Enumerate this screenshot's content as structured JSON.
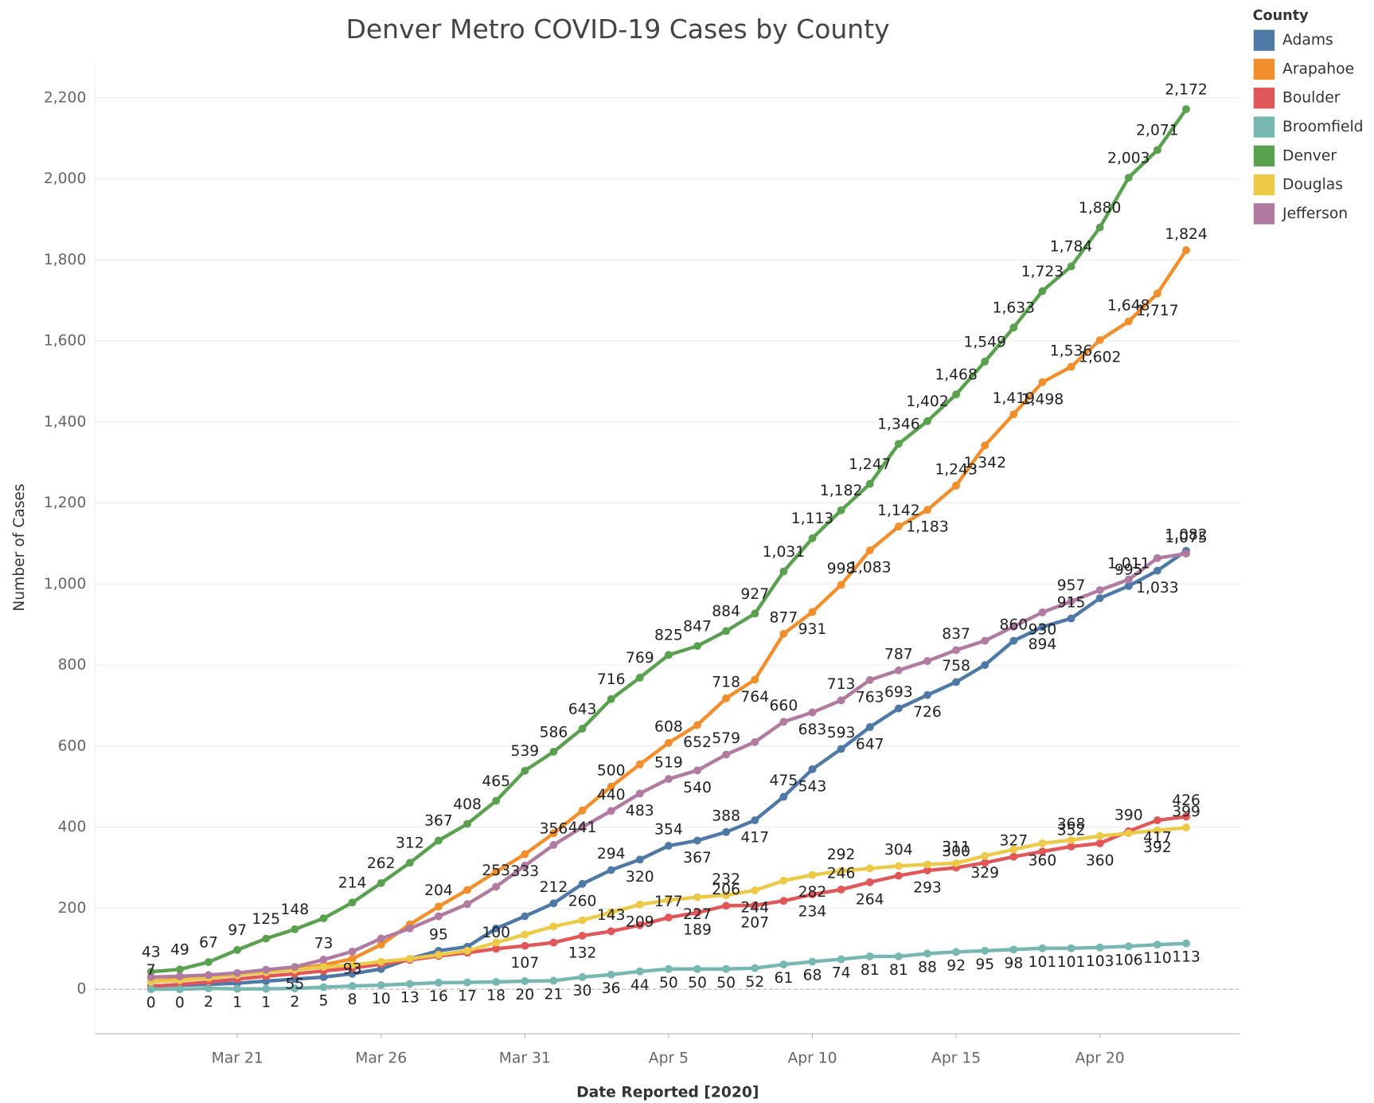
{
  "chart_data": {
    "type": "line",
    "title": "Denver Metro COVID-19 Cases by County",
    "x_label": "Date Reported [2020]",
    "y_label": "Number of Cases",
    "legend_title": "County",
    "legend": "right",
    "grid": true,
    "categories": [
      null,
      null,
      null,
      "Mar 21",
      null,
      null,
      null,
      null,
      "Mar 26",
      null,
      null,
      null,
      null,
      "Mar 31",
      null,
      null,
      null,
      null,
      "Apr 5",
      null,
      null,
      null,
      null,
      "Apr 10",
      null,
      null,
      null,
      null,
      "Apr 15",
      null,
      null,
      null,
      null,
      "Apr 20",
      null,
      null,
      null
    ],
    "ylim": [
      -110,
      2290
    ],
    "yticks": [
      0,
      200,
      400,
      600,
      800,
      {
        "value": 1000,
        "label": "1,000"
      },
      {
        "value": 1200,
        "label": "1,200"
      },
      {
        "value": 1400,
        "label": "1,400"
      },
      {
        "value": 1600,
        "label": "1,600"
      },
      {
        "value": 1800,
        "label": "1,800"
      },
      {
        "value": 2000,
        "label": "2,000"
      },
      {
        "value": 2200,
        "label": "2,200"
      }
    ],
    "series": [
      {
        "name": "Adams",
        "color": "#4e79a7",
        "values": [
          8,
          10,
          12,
          15,
          20,
          25,
          30,
          38,
          50,
          75,
          95,
          105,
          150,
          180,
          212,
          260,
          294,
          320,
          354,
          367,
          388,
          417,
          475,
          543,
          593,
          647,
          693,
          726,
          758,
          800,
          860,
          894,
          915,
          965,
          995,
          1033,
          1082
        ],
        "value_labels": [
          null,
          null,
          null,
          null,
          null,
          null,
          null,
          null,
          null,
          null,
          "95",
          null,
          null,
          null,
          "212",
          "260",
          "294",
          "320",
          "354",
          "367",
          "388",
          "417",
          "475",
          "543",
          "593",
          "647",
          "693",
          "726",
          "758",
          null,
          "860",
          "894",
          "915",
          null,
          "995",
          "1,033",
          "1,082"
        ]
      },
      {
        "name": "Arapahoe",
        "color": "#f28e2b",
        "values": [
          20,
          24,
          30,
          36,
          42,
          50,
          60,
          75,
          110,
          160,
          204,
          245,
          290,
          333,
          385,
          441,
          500,
          555,
          608,
          652,
          718,
          764,
          877,
          931,
          998,
          1083,
          1142,
          1183,
          1243,
          1342,
          1419,
          1498,
          1536,
          1602,
          1648,
          1717,
          1824
        ],
        "value_labels": [
          null,
          null,
          null,
          null,
          null,
          null,
          null,
          null,
          null,
          null,
          "204",
          null,
          null,
          "333",
          null,
          "441",
          "500",
          null,
          "608",
          "652",
          "718",
          "764",
          "877",
          "931",
          "998",
          "1,083",
          "1,142",
          "1,183",
          "1,243",
          "1,342",
          "1,419",
          "1,498",
          "1,536",
          "1,602",
          "1,648",
          "1,717",
          "1,824"
        ]
      },
      {
        "name": "Boulder",
        "color": "#e15759",
        "values": [
          7,
          12,
          18,
          25,
          32,
          38,
          45,
          52,
          62,
          72,
          82,
          90,
          100,
          107,
          115,
          132,
          143,
          158,
          177,
          189,
          206,
          207,
          218,
          234,
          246,
          264,
          280,
          293,
          300,
          312,
          327,
          340,
          352,
          360,
          390,
          417,
          426
        ],
        "value_labels": [
          "7",
          null,
          null,
          null,
          null,
          null,
          null,
          null,
          null,
          null,
          null,
          null,
          "100",
          "107",
          null,
          "132",
          "143",
          null,
          "177",
          "189",
          "206",
          "207",
          null,
          "234",
          "246",
          "264",
          null,
          "293",
          "300",
          null,
          "327",
          null,
          "352",
          "360",
          "390",
          "417",
          "426"
        ]
      },
      {
        "name": "Broomfield",
        "color": "#76b7b2",
        "values": [
          0,
          0,
          2,
          1,
          1,
          2,
          5,
          8,
          10,
          13,
          16,
          17,
          18,
          20,
          21,
          30,
          36,
          44,
          50,
          50,
          50,
          52,
          61,
          68,
          74,
          81,
          81,
          88,
          92,
          95,
          98,
          101,
          101,
          103,
          106,
          110,
          113
        ],
        "value_labels": [
          "0",
          "0",
          "2",
          "1",
          "1",
          "2",
          "5",
          "8",
          "10",
          "13",
          "16",
          "17",
          "18",
          "20",
          "21",
          "30",
          "36",
          "44",
          "50",
          "50",
          "50",
          "52",
          "61",
          "68",
          "74",
          "81",
          "81",
          "88",
          "92",
          "95",
          "98",
          "101",
          "101",
          "103",
          "106",
          "110",
          "113"
        ]
      },
      {
        "name": "Denver",
        "color": "#59a14f",
        "values": [
          43,
          49,
          67,
          97,
          125,
          148,
          175,
          214,
          262,
          312,
          367,
          408,
          465,
          539,
          586,
          643,
          716,
          769,
          825,
          847,
          884,
          927,
          1031,
          1113,
          1182,
          1247,
          1346,
          1402,
          1468,
          1549,
          1633,
          1723,
          1784,
          1880,
          2003,
          2071,
          2172
        ],
        "value_labels": [
          "43",
          "49",
          "67",
          "97",
          "125",
          "148",
          null,
          "214",
          "262",
          "312",
          "367",
          "408",
          "465",
          "539",
          "586",
          "643",
          "716",
          "769",
          "825",
          "847",
          "884",
          "927",
          "1,031",
          "1,113",
          "1,182",
          "1,247",
          "1,346",
          "1,402",
          "1,468",
          "1,549",
          "1,633",
          "1,723",
          "1,784",
          "1,880",
          "2,003",
          "2,071",
          "2,172"
        ]
      },
      {
        "name": "Douglas",
        "color": "#edc948",
        "values": [
          18,
          22,
          28,
          35,
          42,
          48,
          55,
          60,
          68,
          75,
          85,
          95,
          115,
          135,
          155,
          170,
          190,
          209,
          220,
          227,
          232,
          244,
          268,
          282,
          292,
          298,
          304,
          308,
          311,
          329,
          345,
          360,
          368,
          378,
          385,
          392,
          399
        ],
        "value_labels": [
          null,
          null,
          null,
          null,
          null,
          null,
          null,
          null,
          null,
          null,
          null,
          null,
          null,
          null,
          null,
          null,
          null,
          "209",
          null,
          "227",
          "232",
          "244",
          null,
          "282",
          "292",
          null,
          "304",
          null,
          "311",
          "329",
          null,
          "360",
          "368",
          null,
          null,
          "392",
          "399"
        ]
      },
      {
        "name": "Jefferson",
        "color": "#b07aa1",
        "values": [
          30,
          32,
          35,
          40,
          48,
          55,
          73,
          93,
          125,
          150,
          180,
          210,
          253,
          305,
          356,
          400,
          440,
          483,
          519,
          540,
          579,
          610,
          660,
          683,
          713,
          763,
          787,
          810,
          837,
          860,
          895,
          930,
          957,
          985,
          1011,
          1064,
          1075
        ],
        "value_labels": [
          null,
          null,
          null,
          null,
          null,
          "55",
          "73",
          "93",
          null,
          null,
          null,
          null,
          "253",
          null,
          "356",
          null,
          "440",
          "483",
          "519",
          "540",
          "579",
          null,
          "660",
          "683",
          "713",
          "763",
          "787",
          null,
          "837",
          null,
          null,
          "930",
          "957",
          null,
          "1,011",
          null,
          "1,075"
        ]
      }
    ]
  }
}
